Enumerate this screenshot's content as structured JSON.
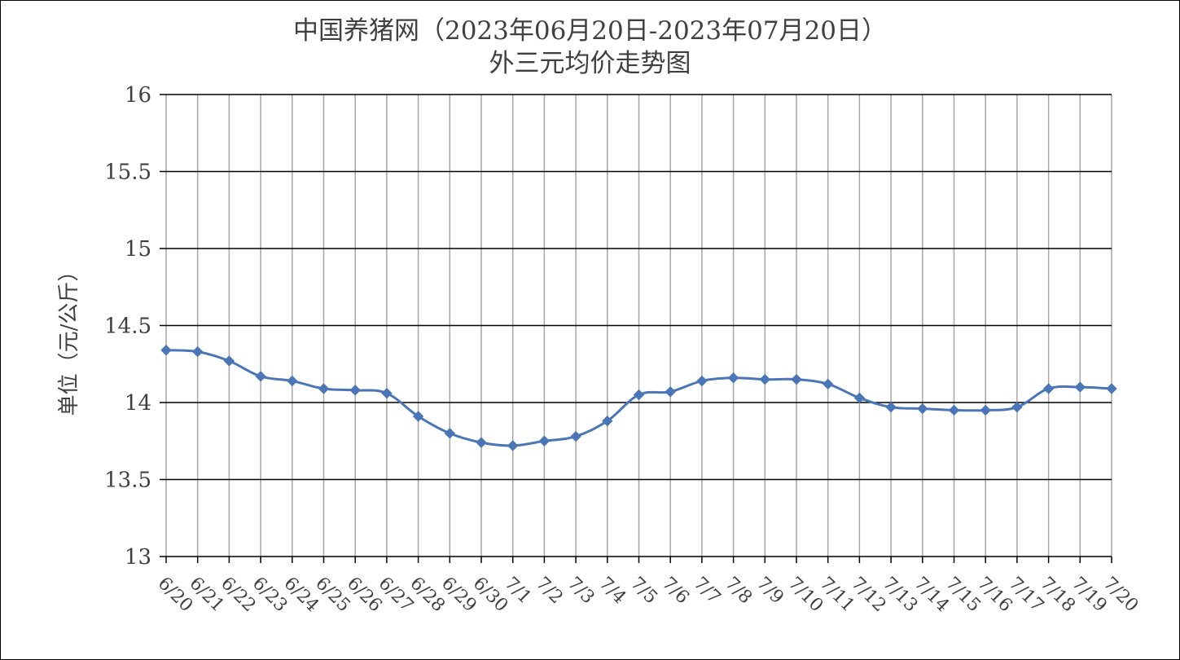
{
  "chart_data": {
    "type": "line",
    "title": "中国养猪网（2023年06月20日-2023年07月20日）",
    "subtitle": "外三元均价走势图",
    "ylabel": "单位（元/公斤）",
    "xlabel": "",
    "ylim": [
      13,
      16
    ],
    "yticks": [
      "13",
      "13.5",
      "14",
      "14.5",
      "15",
      "15.5",
      "16"
    ],
    "grid": true,
    "legend": "none",
    "line_color": "#4a76b8",
    "categories": [
      "6/20",
      "6/21",
      "6/22",
      "6/23",
      "6/24",
      "6/25",
      "6/26",
      "6/27",
      "6/28",
      "6/29",
      "6/30",
      "7/1",
      "7/2",
      "7/3",
      "7/4",
      "7/5",
      "7/6",
      "7/7",
      "7/8",
      "7/9",
      "7/10",
      "7/11",
      "7/12",
      "7/13",
      "7/14",
      "7/15",
      "7/16",
      "7/17",
      "7/18",
      "7/19",
      "7/20"
    ],
    "series": [
      {
        "values": [
          14.34,
          14.33,
          14.27,
          14.17,
          14.14,
          14.09,
          14.08,
          14.06,
          13.91,
          13.8,
          13.74,
          13.72,
          13.75,
          13.78,
          13.88,
          14.05,
          14.07,
          14.14,
          14.16,
          14.15,
          14.15,
          14.12,
          14.03,
          13.97,
          13.96,
          13.95,
          13.95,
          13.97,
          14.09,
          14.1,
          14.09
        ]
      }
    ]
  }
}
